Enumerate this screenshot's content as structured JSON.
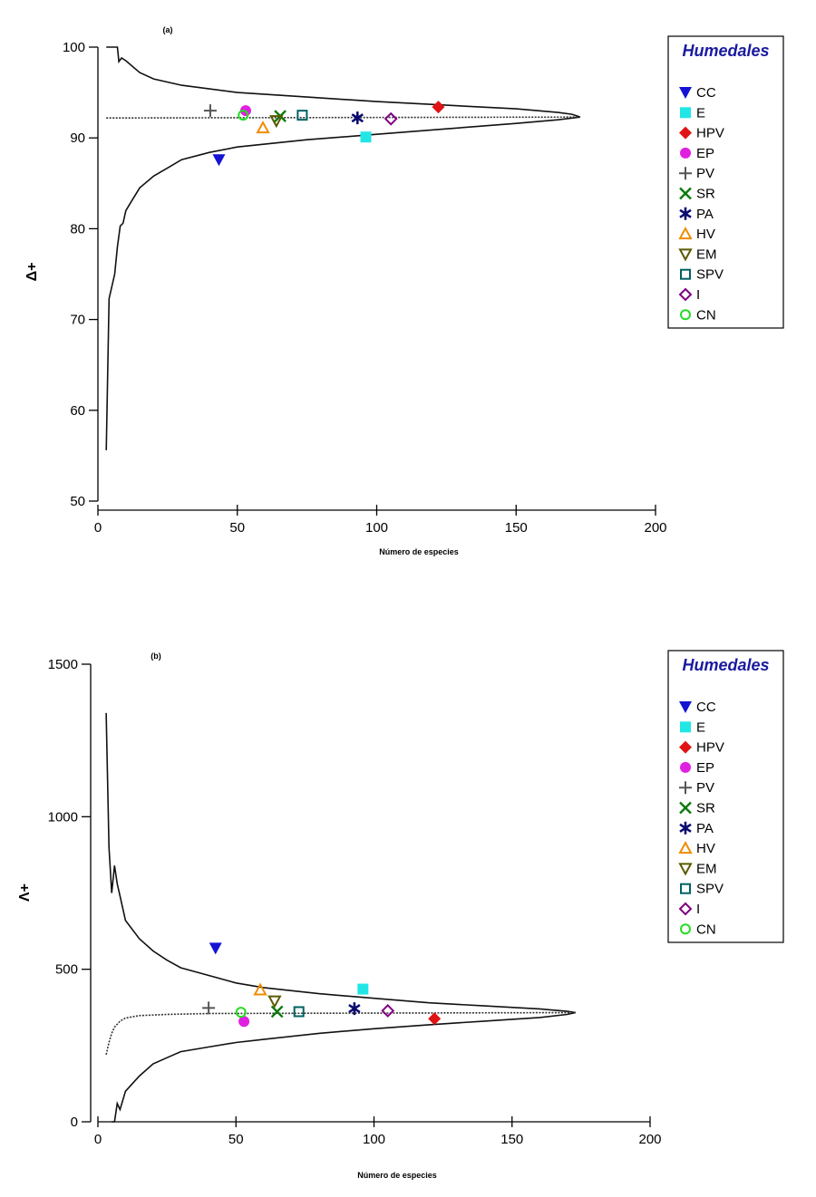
{
  "chart_data": [
    {
      "type": "scatter",
      "panel_label": "(a)",
      "xlabel": "Número de especies",
      "ylabel": "Δ+",
      "xlim": [
        0,
        200
      ],
      "ylim": [
        50,
        100
      ],
      "xticks": [
        0,
        50,
        100,
        150,
        200
      ],
      "yticks": [
        50,
        60,
        70,
        80,
        90,
        100
      ],
      "legend": {
        "title": "Humedales",
        "placement": "right"
      },
      "funnel": {
        "mean": [
          [
            3,
            92.2
          ],
          [
            173,
            92.3
          ]
        ],
        "upper": [
          [
            3,
            100
          ],
          [
            7,
            100
          ],
          [
            7.5,
            98.4
          ],
          [
            8.5,
            98.8
          ],
          [
            10,
            98.5
          ],
          [
            15,
            97.2
          ],
          [
            20,
            96.5
          ],
          [
            30,
            95.8
          ],
          [
            50,
            95.0
          ],
          [
            75,
            94.5
          ],
          [
            100,
            94.0
          ],
          [
            125,
            93.6
          ],
          [
            150,
            93.2
          ],
          [
            165,
            92.8
          ],
          [
            170,
            92.6
          ],
          [
            173,
            92.3
          ]
        ],
        "lower": [
          [
            3,
            55.6
          ],
          [
            4,
            72.3
          ],
          [
            6,
            75
          ],
          [
            7,
            78
          ],
          [
            8,
            80.3
          ],
          [
            9,
            80.6
          ],
          [
            10,
            82
          ],
          [
            12,
            83
          ],
          [
            15,
            84.5
          ],
          [
            20,
            85.8
          ],
          [
            25,
            86.7
          ],
          [
            30,
            87.6
          ],
          [
            40,
            88.4
          ],
          [
            50,
            89.0
          ],
          [
            75,
            89.8
          ],
          [
            100,
            90.4
          ],
          [
            125,
            91.0
          ],
          [
            150,
            91.6
          ],
          [
            165,
            92.0
          ],
          [
            173,
            92.3
          ]
        ]
      },
      "series": [
        {
          "name": "CC",
          "x": 43.4,
          "y": 87.6
        },
        {
          "name": "E",
          "x": 96.1,
          "y": 90.1
        },
        {
          "name": "HPV",
          "x": 122.1,
          "y": 93.4
        },
        {
          "name": "EP",
          "x": 53.0,
          "y": 93.0
        },
        {
          "name": "PV",
          "x": 40.3,
          "y": 93.0
        },
        {
          "name": "SR",
          "x": 65.4,
          "y": 92.4
        },
        {
          "name": "PA",
          "x": 93.1,
          "y": 92.2
        },
        {
          "name": "HV",
          "x": 59.2,
          "y": 91.1
        },
        {
          "name": "EM",
          "x": 64.0,
          "y": 91.9
        },
        {
          "name": "SPV",
          "x": 73.3,
          "y": 92.5
        },
        {
          "name": "I",
          "x": 105.1,
          "y": 92.1
        },
        {
          "name": "CN",
          "x": 52.1,
          "y": 92.5
        }
      ]
    },
    {
      "type": "scatter",
      "panel_label": "(b)",
      "xlabel": "Número de especies",
      "ylabel": "Λ+",
      "xlim": [
        0,
        200
      ],
      "ylim": [
        0,
        1500
      ],
      "xticks": [
        0,
        50,
        100,
        150,
        200
      ],
      "yticks": [
        0,
        500,
        1000,
        1500
      ],
      "legend": {
        "title": "Humedales",
        "placement": "right"
      },
      "funnel": {
        "mean": [
          [
            3,
            220
          ],
          [
            4,
            260
          ],
          [
            5,
            290
          ],
          [
            6,
            310
          ],
          [
            8,
            330
          ],
          [
            10,
            340
          ],
          [
            15,
            348
          ],
          [
            25,
            352
          ],
          [
            40,
            355
          ],
          [
            173,
            358
          ]
        ],
        "upper": [
          [
            3,
            1340
          ],
          [
            4,
            900
          ],
          [
            5,
            750
          ],
          [
            6,
            840
          ],
          [
            7,
            780
          ],
          [
            8,
            740
          ],
          [
            10,
            660
          ],
          [
            15,
            600
          ],
          [
            20,
            560
          ],
          [
            25,
            530
          ],
          [
            30,
            505
          ],
          [
            40,
            480
          ],
          [
            50,
            455
          ],
          [
            60,
            440
          ],
          [
            80,
            420
          ],
          [
            100,
            405
          ],
          [
            120,
            390
          ],
          [
            140,
            380
          ],
          [
            160,
            370
          ],
          [
            170,
            362
          ],
          [
            173,
            358
          ]
        ],
        "lower": [
          [
            5,
            0
          ],
          [
            6,
            0
          ],
          [
            7,
            60
          ],
          [
            8,
            40
          ],
          [
            10,
            100
          ],
          [
            12,
            120
          ],
          [
            15,
            150
          ],
          [
            20,
            190
          ],
          [
            25,
            210
          ],
          [
            30,
            230
          ],
          [
            40,
            245
          ],
          [
            50,
            260
          ],
          [
            60,
            270
          ],
          [
            80,
            290
          ],
          [
            100,
            305
          ],
          [
            120,
            318
          ],
          [
            140,
            330
          ],
          [
            160,
            342
          ],
          [
            170,
            352
          ],
          [
            173,
            358
          ]
        ]
      },
      "series": [
        {
          "name": "CC",
          "x": 42.6,
          "y": 569
        },
        {
          "name": "E",
          "x": 96.0,
          "y": 435
        },
        {
          "name": "HPV",
          "x": 121.9,
          "y": 338
        },
        {
          "name": "EP",
          "x": 52.9,
          "y": 329
        },
        {
          "name": "PV",
          "x": 40.1,
          "y": 373
        },
        {
          "name": "SR",
          "x": 64.9,
          "y": 361
        },
        {
          "name": "PA",
          "x": 92.9,
          "y": 371
        },
        {
          "name": "HV",
          "x": 58.8,
          "y": 432
        },
        {
          "name": "EM",
          "x": 64.0,
          "y": 396
        },
        {
          "name": "SPV",
          "x": 72.8,
          "y": 361
        },
        {
          "name": "I",
          "x": 105.0,
          "y": 364
        },
        {
          "name": "CN",
          "x": 51.8,
          "y": 359
        }
      ]
    }
  ],
  "markers": {
    "CC": {
      "shape": "triangle-down-filled",
      "color": "#1414d2"
    },
    "E": {
      "shape": "square-filled",
      "color": "#22e6e6"
    },
    "HPV": {
      "shape": "diamond-filled",
      "color": "#e01414"
    },
    "EP": {
      "shape": "circle-filled",
      "color": "#e020e0"
    },
    "PV": {
      "shape": "plus",
      "color": "#555555"
    },
    "SR": {
      "shape": "cross",
      "color": "#0a7a0a"
    },
    "PA": {
      "shape": "asterisk",
      "color": "#0a0a70"
    },
    "HV": {
      "shape": "triangle-up-open",
      "color": "#f08c00"
    },
    "EM": {
      "shape": "triangle-down-open",
      "color": "#5a5a00"
    },
    "SPV": {
      "shape": "square-open",
      "color": "#006262"
    },
    "I": {
      "shape": "diamond-open",
      "color": "#800080"
    },
    "CN": {
      "shape": "circle-open",
      "color": "#22dd22"
    }
  }
}
